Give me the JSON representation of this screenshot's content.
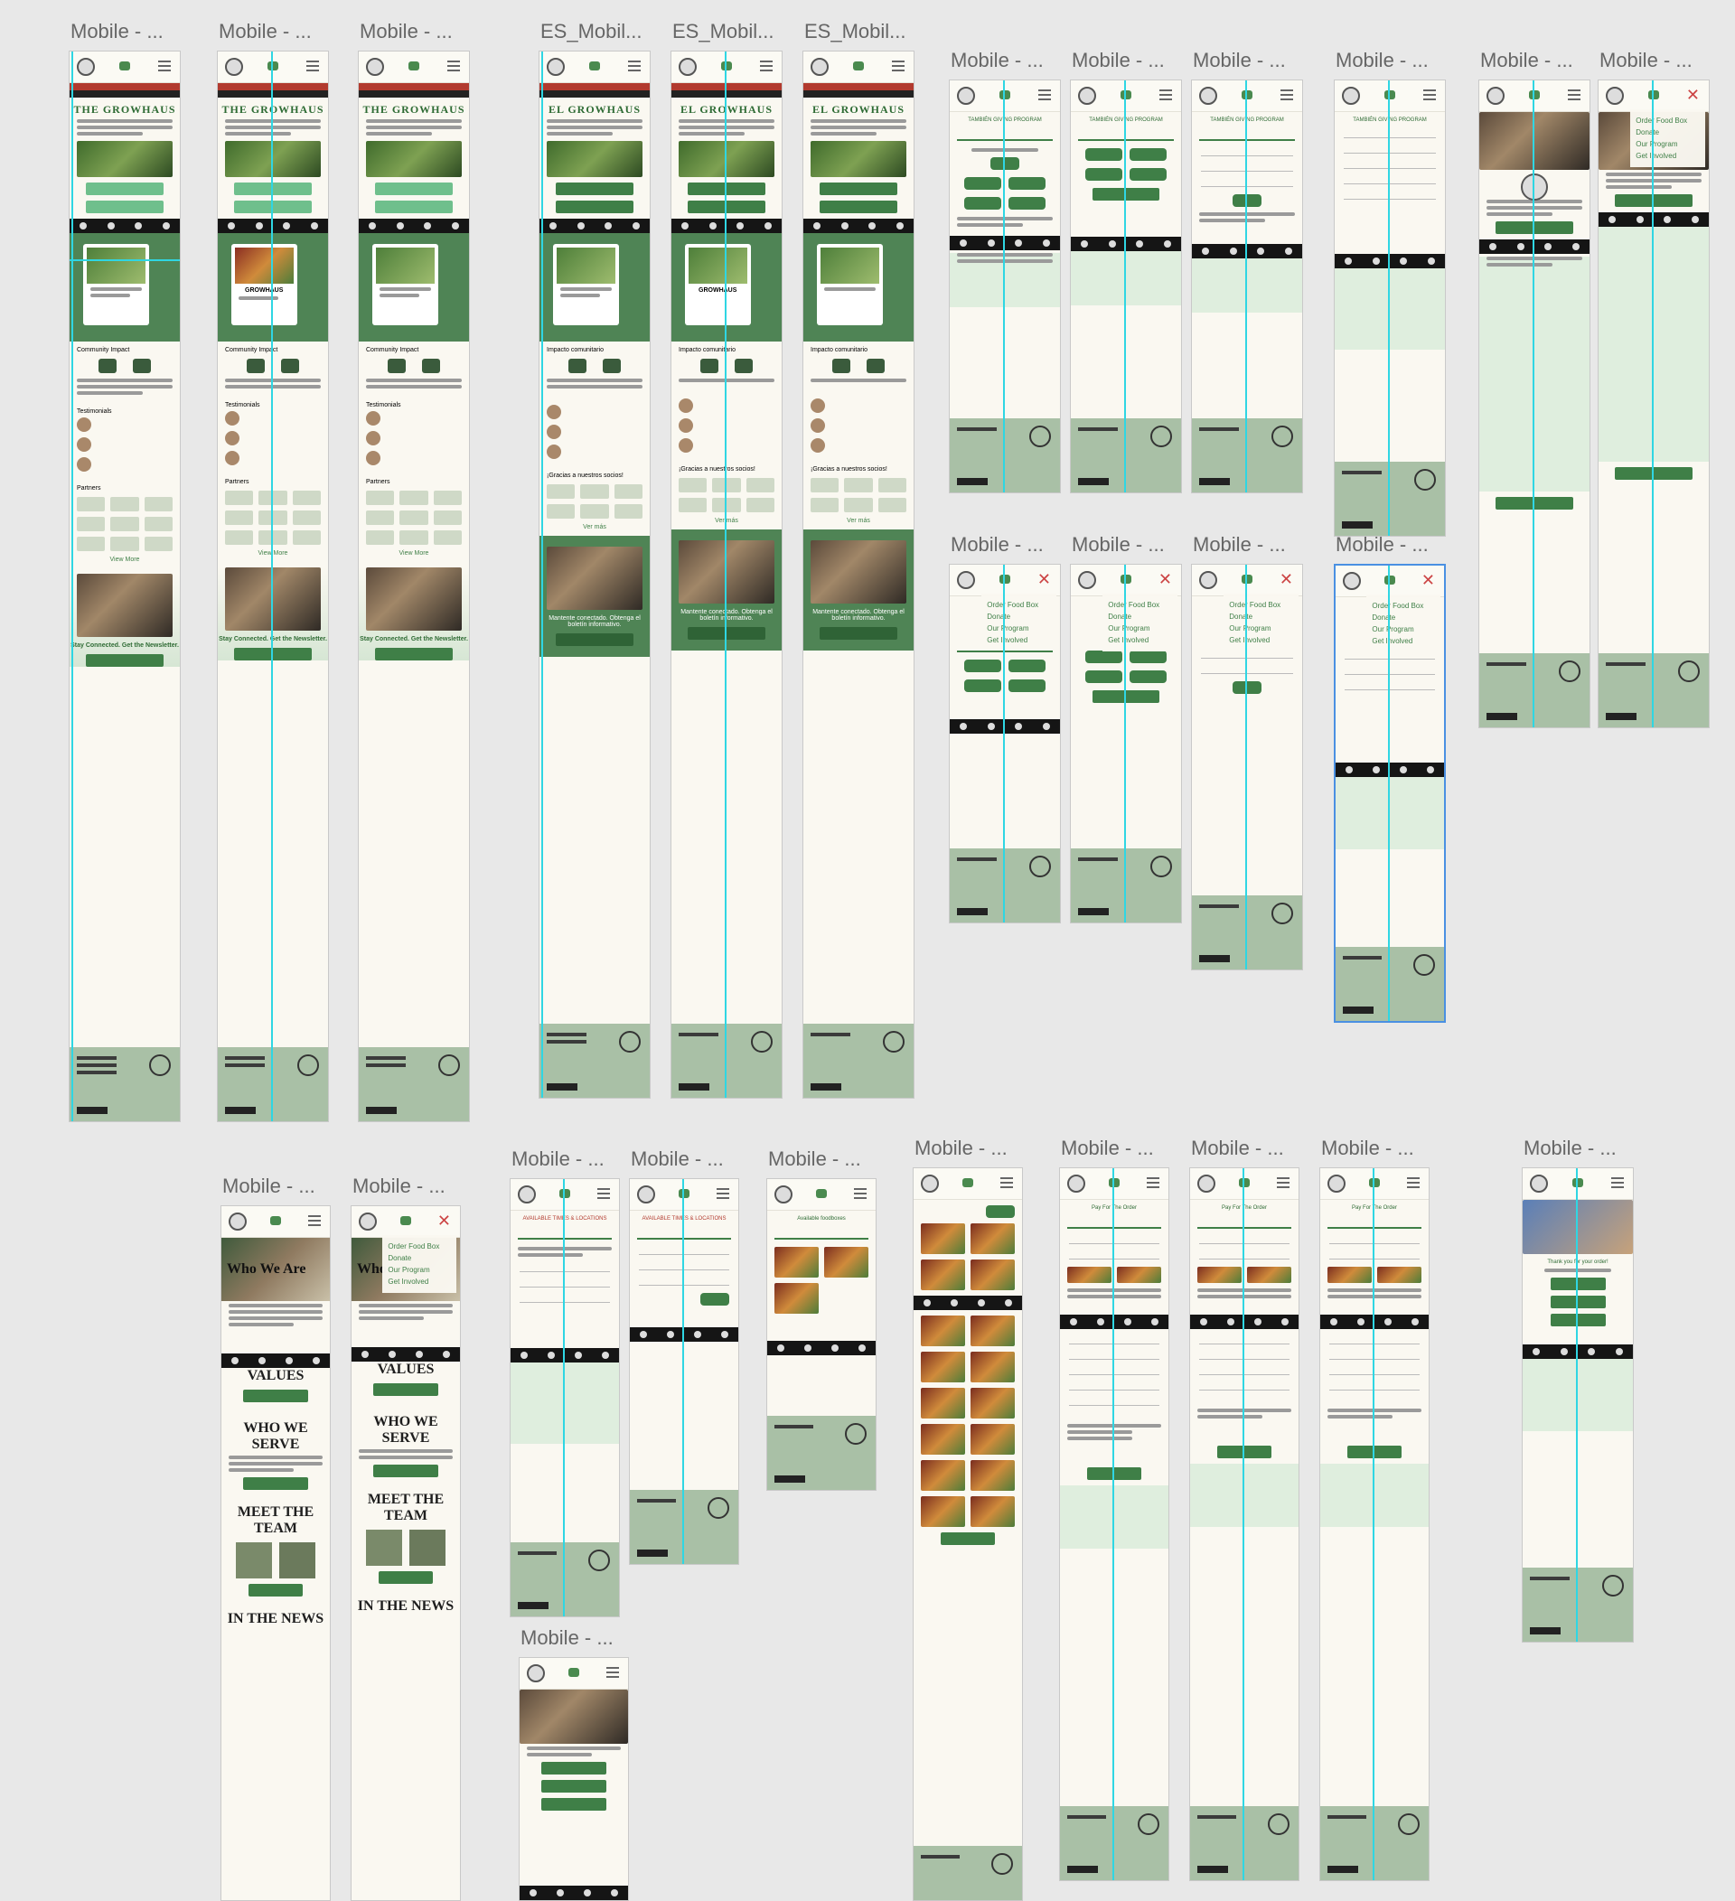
{
  "labels": {
    "mobile": "Mobile - ...",
    "es_mobile": "ES_Mobil..."
  },
  "home": {
    "title_en": "THE GROWHAUS",
    "title_es": "EL GROWHAUS",
    "card_title": "GROWHAUS",
    "community_impact": "Community Impact",
    "impacto": "Impacto comunitario",
    "testimonials": "Testimonials",
    "partners": "Partners",
    "socios": "¡Gracias a nuestros socios!",
    "view_more": "View More",
    "ver_mas": "Ver más",
    "stay_connected": "Stay Connected. Get the Newsletter.",
    "mantente": "Mantente conectado. Obtenga el boletín informativo.",
    "subscribe": "Subscribe",
    "suscribir": "Suscribir"
  },
  "footer": {
    "po_box": "PO Box 16089 Denver, CO 80216"
  },
  "who": {
    "title": "Who We Are",
    "values": "VALUES",
    "who_we_serve": "WHO WE SERVE",
    "meet_team": "MEET THE TEAM",
    "in_news": "IN THE NEWS"
  },
  "menu": {
    "items": [
      "Order Food Box",
      "Donate",
      "Our Program",
      "Get Involved"
    ]
  },
  "giving": {
    "title": "TAMBIÉN GIVING PROGRAM"
  },
  "orders": {
    "times": "AVAILABLE TIMES & LOCATIONS",
    "foodboxes": "Available foodboxes",
    "pay": "Pay For The Order",
    "thanks": "Thank you for your order!"
  }
}
